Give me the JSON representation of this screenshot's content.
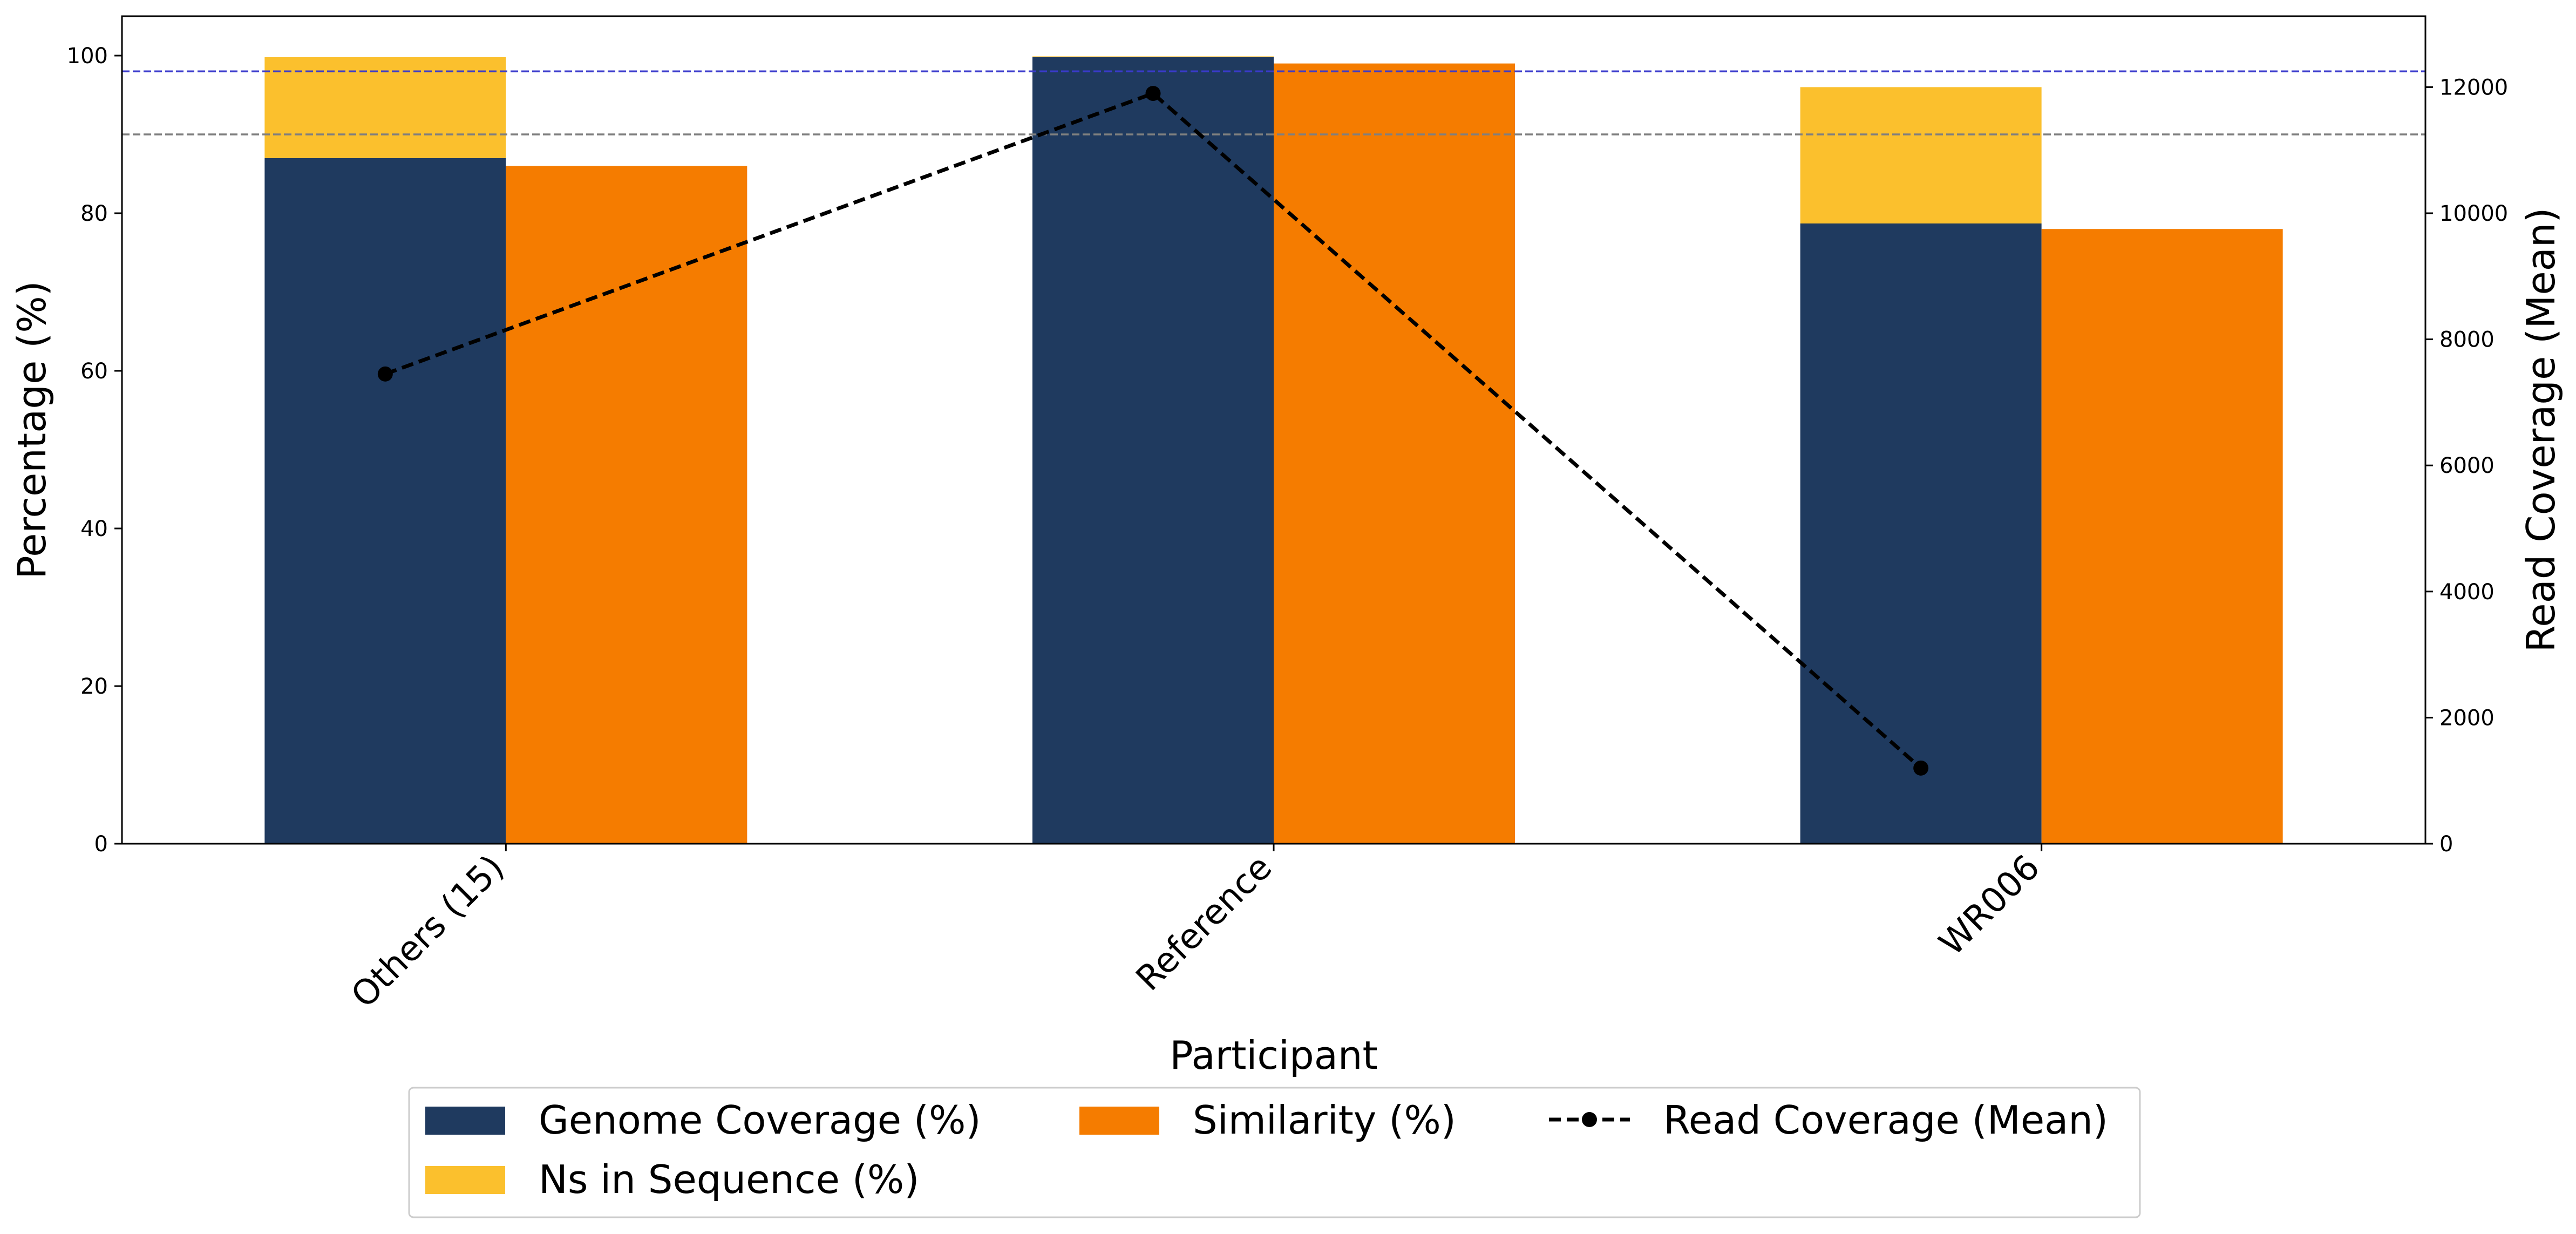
{
  "chart_data": {
    "type": "bar",
    "title": "",
    "categories": [
      "Others (15)",
      "Reference",
      "WR006"
    ],
    "xlabel": "Participant",
    "ylabel": "Percentage (%)",
    "y2label": "Read Coverage (Mean)",
    "ylim": [
      0,
      105
    ],
    "y2lim": [
      0,
      13125
    ],
    "yticks": [
      0,
      20,
      40,
      60,
      80,
      100
    ],
    "y2ticks": [
      0,
      2000,
      4000,
      6000,
      8000,
      10000,
      12000
    ],
    "grid": false,
    "legend_position": "bottom-center",
    "series": [
      {
        "name": "Genome Coverage (%)",
        "kind": "bar",
        "stack_base": true,
        "color": "#1f3a5f",
        "values": [
          87,
          99.8,
          78.7
        ]
      },
      {
        "name": "Ns in Sequence (%)",
        "kind": "bar",
        "stacked_on": "Genome Coverage (%)",
        "color": "#fbc02d",
        "values": [
          12.8,
          0.1,
          17.3
        ]
      },
      {
        "name": "Similarity (%)",
        "kind": "bar",
        "color": "#f57c00",
        "values": [
          86,
          99,
          78
        ]
      },
      {
        "name": "Read Coverage (Mean)",
        "kind": "line",
        "axis": "right",
        "style": "dashed",
        "marker": "circle",
        "color": "#000000",
        "values": [
          7450,
          11900,
          1200
        ]
      }
    ],
    "reference_lines": [
      {
        "axis": "left",
        "value": 98,
        "color": "#3a3acc",
        "style": "dashed"
      },
      {
        "axis": "left",
        "value": 90,
        "color": "#7f7f7f",
        "style": "dashed"
      }
    ]
  }
}
